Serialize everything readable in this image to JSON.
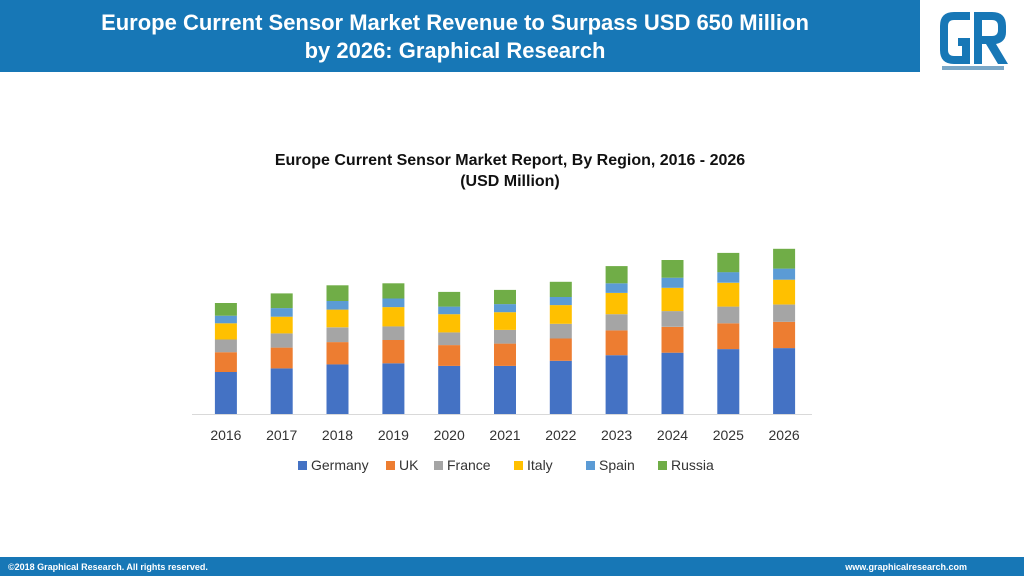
{
  "header": {
    "title_line1": "Europe Current Sensor Market Revenue to Surpass USD 650 Million",
    "title_line2": "by 2026: Graphical Research",
    "logo_letters": "GR"
  },
  "footer": {
    "copyright": "©2018 Graphical Research. All rights reserved.",
    "website": "www.graphicalresearch.com"
  },
  "colors": {
    "header_bg": "#1777b6",
    "Germany": "#4472c4",
    "UK": "#ed7d31",
    "France": "#a5a5a5",
    "Italy": "#ffc000",
    "Spain": "#5b9bd5",
    "Russia": "#70ad47"
  },
  "chart_data": {
    "type": "bar",
    "stacked": true,
    "title_line1": "Europe Current Sensor Market Report, By Region, 2016 - 2026",
    "title_line2": "(USD Million)",
    "categories": [
      "2016",
      "2017",
      "2018",
      "2019",
      "2020",
      "2021",
      "2022",
      "2023",
      "2024",
      "2025",
      "2026"
    ],
    "series": [
      {
        "name": "Germany",
        "color": "#4472c4",
        "values": [
          166,
          180,
          196,
          200,
          190,
          190,
          210,
          232,
          242,
          256,
          260
        ]
      },
      {
        "name": "UK",
        "color": "#ed7d31",
        "values": [
          78,
          82,
          88,
          92,
          82,
          88,
          88,
          98,
          102,
          102,
          104
        ]
      },
      {
        "name": "France",
        "color": "#a5a5a5",
        "values": [
          50,
          56,
          58,
          54,
          50,
          54,
          58,
          64,
          62,
          66,
          68
        ]
      },
      {
        "name": "Italy",
        "color": "#ffc000",
        "values": [
          64,
          66,
          70,
          76,
          72,
          70,
          74,
          84,
          92,
          94,
          98
        ]
      },
      {
        "name": "Spain",
        "color": "#5b9bd5",
        "values": [
          30,
          34,
          34,
          34,
          30,
          32,
          32,
          38,
          40,
          42,
          44
        ]
      },
      {
        "name": "Russia",
        "color": "#70ad47",
        "values": [
          50,
          58,
          62,
          60,
          58,
          56,
          60,
          68,
          70,
          76,
          78
        ]
      }
    ],
    "ylim": [
      0,
      750
    ],
    "y_axis_shown": false,
    "grid": false,
    "legend_position": "bottom"
  }
}
